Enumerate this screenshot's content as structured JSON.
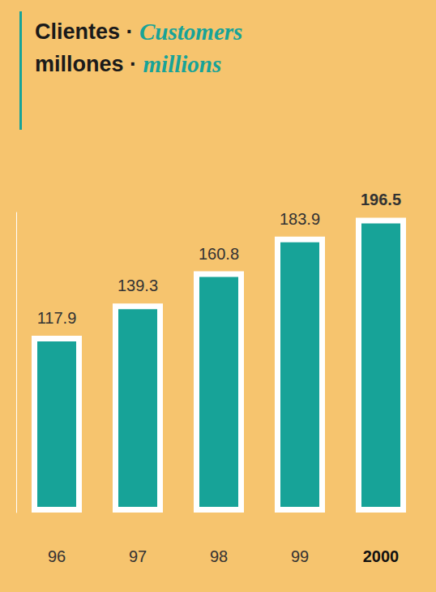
{
  "chart_data": {
    "type": "bar",
    "title": "Clientes · Customers",
    "subtitle": "millones · millions",
    "categories": [
      "96",
      "97",
      "98",
      "99",
      "2000"
    ],
    "values": [
      117.9,
      139.3,
      160.8,
      183.9,
      196.5
    ],
    "color": "#17a398",
    "ylim": [
      0,
      200
    ],
    "yticks": [],
    "grid": false,
    "data_labels": true,
    "tick_labels": "x"
  }
}
